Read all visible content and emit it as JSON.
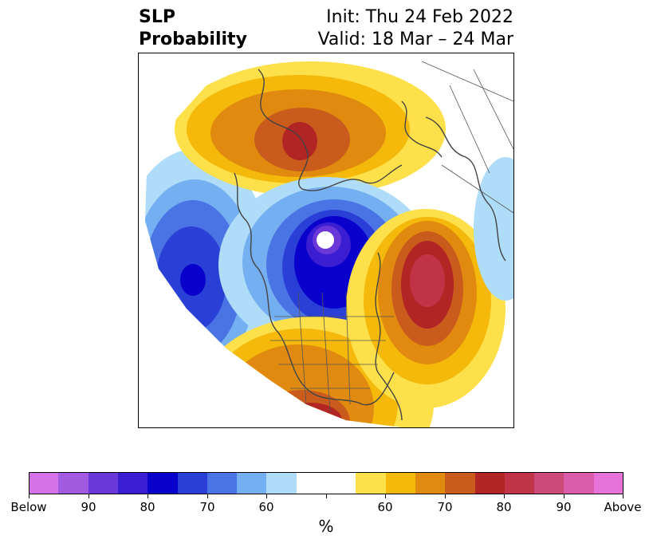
{
  "title": {
    "left_line1": "SLP",
    "left_line2": "Probability",
    "right_line1": "Init: Thu 24 Feb 2022",
    "right_line2": "Valid: 18 Mar – 24 Mar"
  },
  "map": {
    "projection": "polar stereographic (North Pole)",
    "region": "North America / Arctic / North Pacific"
  },
  "colorbar": {
    "unit": "%",
    "labels": [
      "Below",
      "90",
      "80",
      "70",
      "60",
      "60",
      "70",
      "80",
      "90",
      "Above"
    ],
    "colors": [
      "#d572e8",
      "#a25ae0",
      "#6a38d8",
      "#3b1ed2",
      "#0a00cc",
      "#2a3fd6",
      "#4a73e3",
      "#74b0f1",
      "#aedcf9",
      "#ffffff",
      "#ffffff",
      "#fee04a",
      "#f4b90a",
      "#e08b10",
      "#c95b1c",
      "#b22525",
      "#c13447",
      "#cd4a78",
      "#da5da9",
      "#e673d9"
    ]
  },
  "colors": {
    "below_strong": "#3b1ed2",
    "above_strong": "#b22525"
  }
}
